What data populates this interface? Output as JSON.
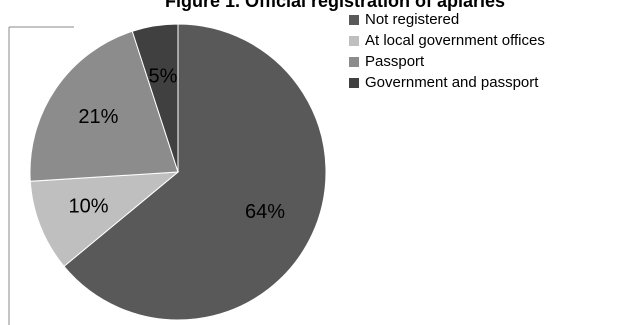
{
  "chart_data": {
    "type": "pie",
    "title": "Figure 1. Official registration of apiaries",
    "categories": [
      "Not registered",
      "At local government offices",
      "Passport",
      "Government and passport"
    ],
    "values": [
      64,
      10,
      21,
      5
    ],
    "labels": [
      "64%",
      "10%",
      "21%",
      "5%"
    ],
    "colors": [
      "#595959",
      "#bfbfbf",
      "#8c8c8c",
      "#404040"
    ],
    "legend_position": "right"
  }
}
